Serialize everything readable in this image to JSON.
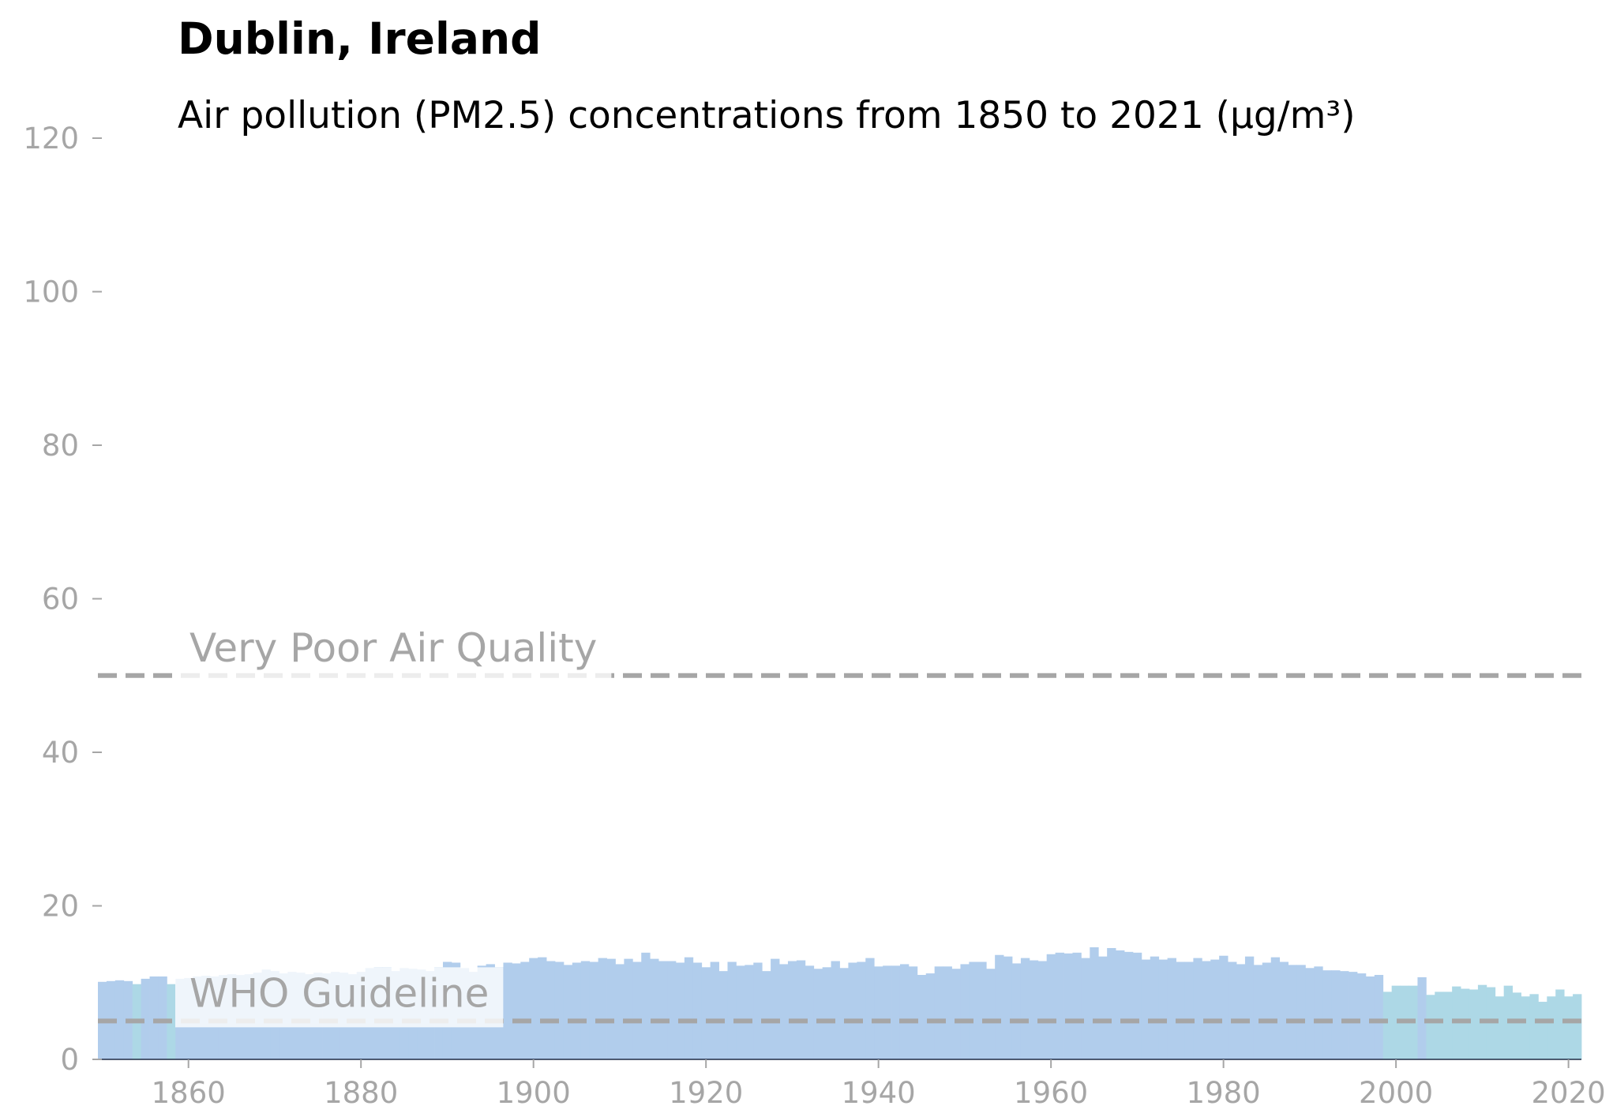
{
  "chart_data": {
    "type": "bar",
    "title": "Dublin, Ireland",
    "subtitle": "Air pollution (PM2.5) concentrations from 1850 to 2021 (µg/m³)",
    "x": [
      1850,
      1851,
      1852,
      1853,
      1854,
      1855,
      1856,
      1857,
      1858,
      1859,
      1860,
      1861,
      1862,
      1863,
      1864,
      1865,
      1866,
      1867,
      1868,
      1869,
      1870,
      1871,
      1872,
      1873,
      1874,
      1875,
      1876,
      1877,
      1878,
      1879,
      1880,
      1881,
      1882,
      1883,
      1884,
      1885,
      1886,
      1887,
      1888,
      1889,
      1890,
      1891,
      1892,
      1893,
      1894,
      1895,
      1896,
      1897,
      1898,
      1899,
      1900,
      1901,
      1902,
      1903,
      1904,
      1905,
      1906,
      1907,
      1908,
      1909,
      1910,
      1911,
      1912,
      1913,
      1914,
      1915,
      1916,
      1917,
      1918,
      1919,
      1920,
      1921,
      1922,
      1923,
      1924,
      1925,
      1926,
      1927,
      1928,
      1929,
      1930,
      1931,
      1932,
      1933,
      1934,
      1935,
      1936,
      1937,
      1938,
      1939,
      1940,
      1941,
      1942,
      1943,
      1944,
      1945,
      1946,
      1947,
      1948,
      1949,
      1950,
      1951,
      1952,
      1953,
      1954,
      1955,
      1956,
      1957,
      1958,
      1959,
      1960,
      1961,
      1962,
      1963,
      1964,
      1965,
      1966,
      1967,
      1968,
      1969,
      1970,
      1971,
      1972,
      1973,
      1974,
      1975,
      1976,
      1977,
      1978,
      1979,
      1980,
      1981,
      1982,
      1983,
      1984,
      1985,
      1986,
      1987,
      1988,
      1989,
      1990,
      1991,
      1992,
      1993,
      1994,
      1995,
      1996,
      1997,
      1998,
      1999,
      2000,
      2001,
      2002,
      2003,
      2004,
      2005,
      2006,
      2007,
      2008,
      2009,
      2010,
      2011,
      2012,
      2013,
      2014,
      2015,
      2016,
      2017,
      2018,
      2019,
      2020,
      2021
    ],
    "values": [
      10.1,
      10.2,
      10.3,
      10.2,
      9.8,
      10.5,
      10.8,
      10.8,
      9.8,
      10.5,
      10.6,
      10.8,
      10.9,
      10.8,
      11.0,
      11.1,
      11.0,
      11.1,
      11.3,
      11.7,
      11.5,
      11.2,
      11.4,
      11.3,
      11.1,
      11.3,
      11.2,
      11.4,
      11.3,
      11.1,
      11.4,
      11.9,
      12.0,
      12.0,
      11.5,
      11.9,
      11.8,
      11.7,
      11.5,
      12.0,
      12.7,
      12.6,
      11.9,
      11.4,
      12.2,
      12.4,
      12.0,
      12.6,
      12.5,
      12.7,
      13.2,
      13.3,
      12.8,
      12.7,
      12.3,
      12.6,
      12.8,
      12.7,
      13.2,
      13.1,
      12.4,
      13.1,
      12.7,
      13.9,
      13.1,
      12.8,
      12.8,
      12.6,
      13.3,
      12.6,
      12.0,
      12.7,
      11.5,
      12.7,
      12.2,
      12.3,
      12.6,
      11.5,
      13.1,
      12.4,
      12.8,
      12.9,
      12.2,
      11.8,
      12.0,
      12.8,
      11.9,
      12.6,
      12.7,
      13.2,
      12.1,
      12.2,
      12.2,
      12.4,
      12.1,
      11.0,
      11.2,
      12.1,
      12.1,
      11.8,
      12.4,
      12.7,
      12.7,
      11.8,
      13.6,
      13.4,
      12.5,
      13.2,
      12.9,
      12.8,
      13.7,
      13.9,
      13.8,
      13.9,
      13.2,
      14.6,
      13.4,
      14.5,
      14.2,
      14.0,
      13.9,
      13.0,
      13.4,
      13.0,
      13.2,
      12.7,
      12.7,
      13.2,
      12.8,
      13.0,
      13.5,
      12.7,
      12.4,
      13.4,
      12.3,
      12.6,
      13.3,
      12.7,
      12.3,
      12.3,
      11.9,
      12.1,
      11.6,
      11.6,
      11.5,
      11.4,
      11.2,
      10.8,
      11.0,
      8.8,
      9.6,
      9.6,
      9.6,
      10.7,
      8.4,
      8.8,
      8.8,
      9.5,
      9.2,
      9.1,
      9.7,
      9.4,
      8.2,
      9.6,
      8.7,
      8.2,
      8.5,
      7.5,
      8.2,
      9.1,
      8.2,
      8.5
    ],
    "colors": [
      "#b1cdec",
      "#b1cdec",
      "#b1cdec",
      "#b1cdec",
      "#add8e6",
      "#b1cdec",
      "#b1cdec",
      "#b1cdec",
      "#add8e6",
      "#b1cdec",
      "#b1cdec",
      "#b1cdec",
      "#b1cdec",
      "#b1cdec",
      "#b1cdec",
      "#b1cdec",
      "#b1cdec",
      "#b1cdec",
      "#b1cdec",
      "#b1cdec",
      "#b1cdec",
      "#b1cdec",
      "#b1cdec",
      "#b1cdec",
      "#b1cdec",
      "#b1cdec",
      "#b1cdec",
      "#b1cdec",
      "#b1cdec",
      "#b1cdec",
      "#b1cdec",
      "#b1cdec",
      "#b1cdec",
      "#b1cdec",
      "#b1cdec",
      "#b1cdec",
      "#b1cdec",
      "#b1cdec",
      "#b1cdec",
      "#b1cdec",
      "#b1cdec",
      "#b1cdec",
      "#b1cdec",
      "#b1cdec",
      "#b1cdec",
      "#b1cdec",
      "#b1cdec",
      "#b1cdec",
      "#b1cdec",
      "#b1cdec",
      "#b1cdec",
      "#b1cdec",
      "#b1cdec",
      "#b1cdec",
      "#b1cdec",
      "#b1cdec",
      "#b1cdec",
      "#b1cdec",
      "#b1cdec",
      "#b1cdec",
      "#b1cdec",
      "#b1cdec",
      "#b1cdec",
      "#b1cdec",
      "#b1cdec",
      "#b1cdec",
      "#b1cdec",
      "#b1cdec",
      "#b1cdec",
      "#b1cdec",
      "#b1cdec",
      "#b1cdec",
      "#b1cdec",
      "#b1cdec",
      "#b1cdec",
      "#b1cdec",
      "#b1cdec",
      "#b1cdec",
      "#b1cdec",
      "#b1cdec",
      "#b1cdec",
      "#b1cdec",
      "#b1cdec",
      "#b1cdec",
      "#b1cdec",
      "#b1cdec",
      "#b1cdec",
      "#b1cdec",
      "#b1cdec",
      "#b1cdec",
      "#b1cdec",
      "#b1cdec",
      "#b1cdec",
      "#b1cdec",
      "#b1cdec",
      "#b1cdec",
      "#b1cdec",
      "#b1cdec",
      "#b1cdec",
      "#b1cdec",
      "#b1cdec",
      "#b1cdec",
      "#b1cdec",
      "#b1cdec",
      "#b1cdec",
      "#b1cdec",
      "#b1cdec",
      "#b1cdec",
      "#b1cdec",
      "#b1cdec",
      "#b1cdec",
      "#b1cdec",
      "#b1cdec",
      "#b1cdec",
      "#b1cdec",
      "#b1cdec",
      "#b1cdec",
      "#b1cdec",
      "#b1cdec",
      "#b1cdec",
      "#b1cdec",
      "#b1cdec",
      "#b1cdec",
      "#b1cdec",
      "#b1cdec",
      "#b1cdec",
      "#b1cdec",
      "#b1cdec",
      "#b1cdec",
      "#b1cdec",
      "#b1cdec",
      "#b1cdec",
      "#b1cdec",
      "#b1cdec",
      "#b1cdec",
      "#b1cdec",
      "#b1cdec",
      "#b1cdec",
      "#b1cdec",
      "#b1cdec",
      "#b1cdec",
      "#b1cdec",
      "#b1cdec",
      "#b1cdec",
      "#b1cdec",
      "#b1cdec",
      "#b1cdec",
      "#b1cdec",
      "#b1cdec",
      "#add8e6",
      "#add8e6",
      "#add8e6",
      "#add8e6",
      "#b1cdec",
      "#add8e6",
      "#add8e6",
      "#add8e6",
      "#add8e6",
      "#add8e6",
      "#add8e6",
      "#add8e6",
      "#add8e6",
      "#add8e6",
      "#add8e6",
      "#add8e6",
      "#add8e6",
      "#add8e6",
      "#add8e6",
      "#add8e6",
      "#add8e6",
      "#add8e6",
      "#add8e6"
    ],
    "reference_lines": [
      {
        "value": 50,
        "label": "Very Poor Air Quality",
        "color": "#a6a6a6"
      },
      {
        "value": 5,
        "label": "WHO Guideline",
        "color": "#a6a6a6"
      }
    ],
    "xlim": [
      1849.5,
      2021.5
    ],
    "xticks": [
      1860,
      1880,
      1900,
      1920,
      1940,
      1960,
      1980,
      2000,
      2020
    ],
    "ylim": [
      0,
      120
    ],
    "yticks": [
      0,
      20,
      40,
      60,
      80,
      100,
      120
    ],
    "grid": false
  }
}
